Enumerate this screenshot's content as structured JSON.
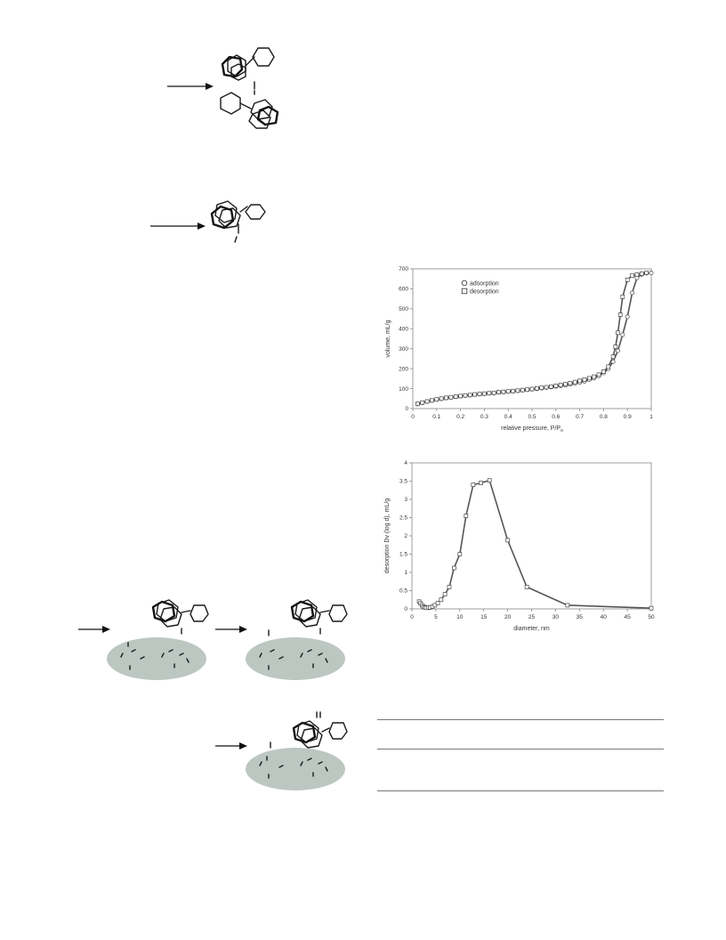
{
  "chart_data": [
    {
      "type": "line",
      "xlabel": "relative pressure, P/P",
      "xlabel_sub": "o",
      "ylabel": "volume, mL/g",
      "xlim": [
        0,
        1
      ],
      "ylim": [
        0,
        700
      ],
      "xticks": [
        "0",
        "0.1",
        "0.2",
        "0.3",
        "0.4",
        "0.5",
        "0.6",
        "0.7",
        "0.8",
        "0.9",
        "1"
      ],
      "yticks": [
        "0",
        "100",
        "200",
        "300",
        "400",
        "500",
        "600",
        "700"
      ],
      "legend": "top-left",
      "series": [
        {
          "name": "adsorption",
          "marker": "circle",
          "x": [
            0.02,
            0.04,
            0.06,
            0.08,
            0.1,
            0.12,
            0.14,
            0.16,
            0.18,
            0.2,
            0.22,
            0.24,
            0.26,
            0.28,
            0.3,
            0.32,
            0.34,
            0.36,
            0.38,
            0.4,
            0.42,
            0.44,
            0.46,
            0.48,
            0.5,
            0.52,
            0.54,
            0.56,
            0.58,
            0.6,
            0.62,
            0.64,
            0.66,
            0.68,
            0.7,
            0.72,
            0.74,
            0.76,
            0.78,
            0.8,
            0.82,
            0.84,
            0.86,
            0.88,
            0.9,
            0.92,
            0.94,
            0.96,
            0.98,
            1.0
          ],
          "y": [
            22,
            29,
            35,
            40,
            45,
            49,
            53,
            56,
            59,
            62,
            65,
            67,
            70,
            72,
            74,
            76,
            78,
            81,
            83,
            85,
            87,
            89,
            92,
            94,
            97,
            99,
            102,
            105,
            108,
            111,
            114,
            117,
            121,
            126,
            131,
            137,
            144,
            152,
            163,
            178,
            200,
            235,
            290,
            370,
            460,
            580,
            655,
            672,
            678,
            680
          ]
        },
        {
          "name": "desorption",
          "marker": "square",
          "x": [
            0.98,
            0.96,
            0.94,
            0.92,
            0.9,
            0.88,
            0.87,
            0.86,
            0.85,
            0.84,
            0.82,
            0.8,
            0.78,
            0.76,
            0.74,
            0.72,
            0.7,
            0.68,
            0.66,
            0.64,
            0.62,
            0.6,
            0.58,
            0.56,
            0.54,
            0.52,
            0.5,
            0.48,
            0.46,
            0.44,
            0.42,
            0.4,
            0.38,
            0.36,
            0.34,
            0.32,
            0.3,
            0.28,
            0.26,
            0.24,
            0.22,
            0.2,
            0.18,
            0.16,
            0.14,
            0.12,
            0.1,
            0.08,
            0.06,
            0.04,
            0.02
          ],
          "y": [
            680,
            676,
            672,
            666,
            645,
            560,
            470,
            380,
            310,
            260,
            210,
            185,
            170,
            160,
            152,
            145,
            139,
            133,
            127,
            122,
            118,
            114,
            110,
            107,
            104,
            101,
            98,
            95,
            93,
            90,
            88,
            86,
            84,
            82,
            79,
            77,
            75,
            73,
            71,
            68,
            66,
            63,
            60,
            57,
            54,
            50,
            46,
            41,
            36,
            30,
            24
          ]
        }
      ]
    },
    {
      "type": "line",
      "xlabel": "diameter, nm",
      "ylabel": "desorption Dv (log d), mL/g",
      "xlim": [
        0,
        50
      ],
      "ylim": [
        0,
        4
      ],
      "xticks": [
        "0",
        "5",
        "10",
        "15",
        "20",
        "25",
        "30",
        "35",
        "40",
        "45",
        "50"
      ],
      "yticks": [
        "0",
        "0.5",
        "1",
        "1.5",
        "2",
        "2.5",
        "3",
        "3.5",
        "4"
      ],
      "series": [
        {
          "x": [
            1.5,
            1.8,
            2.1,
            2.4,
            2.7,
            3.0,
            3.4,
            3.8,
            4.3,
            4.8,
            5.4,
            6.1,
            6.9,
            7.8,
            8.8,
            10.0,
            11.3,
            12.8,
            14.4,
            16.2,
            20.0,
            24.0,
            32.5,
            50.0
          ],
          "y": [
            0.2,
            0.15,
            0.1,
            0.06,
            0.04,
            0.03,
            0.03,
            0.04,
            0.06,
            0.1,
            0.16,
            0.25,
            0.4,
            0.6,
            1.12,
            1.5,
            2.55,
            3.4,
            3.45,
            3.52,
            1.88,
            0.6,
            0.1,
            0.02
          ]
        }
      ]
    }
  ],
  "table": {
    "rows": 3,
    "cols": 4
  }
}
